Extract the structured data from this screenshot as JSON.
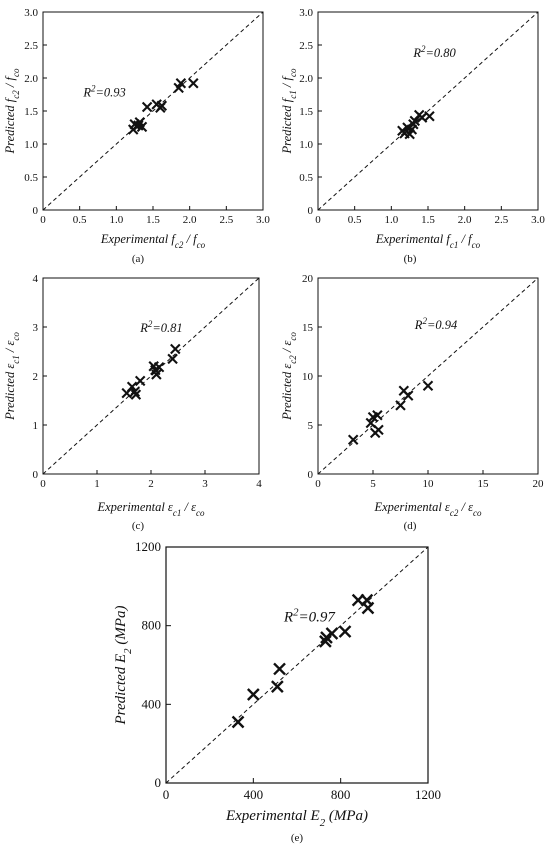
{
  "chart_data": [
    {
      "type": "scatter",
      "panel_label": "(a)",
      "xlabel": {
        "pre": "Experimental f",
        "sub1": "c2",
        "mid": " / f",
        "sub2": "co"
      },
      "ylabel": {
        "pre": "Predicted f",
        "sub1": "c2",
        "mid": " / f",
        "sub2": "co"
      },
      "xlim": [
        0,
        3
      ],
      "ylim": [
        0,
        3
      ],
      "xticks": [
        "0",
        "0.5",
        "1.0",
        "1.5",
        "2.0",
        "2.5",
        "3.0"
      ],
      "yticks": [
        "0",
        "0.5",
        "1.0",
        "1.5",
        "2.0",
        "2.5",
        "3.0"
      ],
      "annotation": {
        "pre": "R",
        "sup": "2",
        "post": "=0.93",
        "x": 0.55,
        "y": 1.72
      },
      "reference_line": "y = x (dashed)",
      "marker": "x",
      "points": [
        [
          1.23,
          1.22
        ],
        [
          1.25,
          1.3
        ],
        [
          1.3,
          1.28
        ],
        [
          1.32,
          1.33
        ],
        [
          1.35,
          1.26
        ],
        [
          1.42,
          1.56
        ],
        [
          1.55,
          1.6
        ],
        [
          1.6,
          1.55
        ],
        [
          1.62,
          1.58
        ],
        [
          1.85,
          1.85
        ],
        [
          1.88,
          1.92
        ],
        [
          2.05,
          1.92
        ]
      ]
    },
    {
      "type": "scatter",
      "panel_label": "(b)",
      "xlabel": {
        "pre": "Experimental f",
        "sub1": "c1",
        "mid": " / f",
        "sub2": "co"
      },
      "ylabel": {
        "pre": "Predicted f",
        "sub1": "c1",
        "mid": " / f",
        "sub2": "co"
      },
      "xlim": [
        0,
        3
      ],
      "ylim": [
        0,
        3
      ],
      "xticks": [
        "0",
        "0.5",
        "1.0",
        "1.5",
        "2.0",
        "2.5",
        "3.0"
      ],
      "yticks": [
        "0",
        "0.5",
        "1.0",
        "1.5",
        "2.0",
        "2.5",
        "3.0"
      ],
      "annotation": {
        "pre": "R",
        "sup": "2",
        "post": "=0.80",
        "x": 1.3,
        "y": 2.32
      },
      "reference_line": "y = x (dashed)",
      "marker": "x",
      "points": [
        [
          1.15,
          1.2
        ],
        [
          1.18,
          1.16
        ],
        [
          1.22,
          1.25
        ],
        [
          1.25,
          1.15
        ],
        [
          1.28,
          1.22
        ],
        [
          1.3,
          1.3
        ],
        [
          1.32,
          1.35
        ],
        [
          1.38,
          1.44
        ],
        [
          1.42,
          1.4
        ],
        [
          1.52,
          1.42
        ]
      ]
    },
    {
      "type": "scatter",
      "panel_label": "(c)",
      "xlabel": {
        "pre": "Experimental ε",
        "sub1": "c1",
        "mid": " / ε",
        "sub2": "co"
      },
      "ylabel": {
        "pre": "Predicted ε",
        "sub1": "c1",
        "mid": " / ε",
        "sub2": "co"
      },
      "xlim": [
        0,
        4
      ],
      "ylim": [
        0,
        4
      ],
      "xticks": [
        "0",
        "1",
        "2",
        "3",
        "4"
      ],
      "yticks": [
        "0",
        "1",
        "2",
        "3",
        "4"
      ],
      "annotation": {
        "pre": "R",
        "sup": "2",
        "post": "=0.81",
        "x": 1.8,
        "y": 2.9
      },
      "reference_line": "y = x (dashed)",
      "marker": "x",
      "points": [
        [
          1.55,
          1.65
        ],
        [
          1.65,
          1.78
        ],
        [
          1.7,
          1.68
        ],
        [
          1.72,
          1.62
        ],
        [
          1.8,
          1.9
        ],
        [
          2.05,
          2.2
        ],
        [
          2.08,
          2.12
        ],
        [
          2.1,
          2.03
        ],
        [
          2.15,
          2.18
        ],
        [
          2.4,
          2.35
        ],
        [
          2.45,
          2.55
        ]
      ]
    },
    {
      "type": "scatter",
      "panel_label": "(d)",
      "xlabel": {
        "pre": "Experimental ε",
        "sub1": "c2",
        "mid": " / ε",
        "sub2": "co"
      },
      "ylabel": {
        "pre": "Predicted ε",
        "sub1": "c2",
        "mid": " / ε",
        "sub2": "co"
      },
      "xlim": [
        0,
        20
      ],
      "ylim": [
        0,
        20
      ],
      "xticks": [
        "0",
        "5",
        "10",
        "15",
        "20"
      ],
      "yticks": [
        "0",
        "5",
        "10",
        "15",
        "20"
      ],
      "annotation": {
        "pre": "R",
        "sup": "2",
        "post": "=0.94",
        "x": 8.8,
        "y": 14.8
      },
      "reference_line": "y = x (dashed)",
      "marker": "x",
      "points": [
        [
          3.2,
          3.5
        ],
        [
          4.8,
          5.2
        ],
        [
          5.0,
          5.8
        ],
        [
          5.2,
          4.2
        ],
        [
          5.4,
          6.0
        ],
        [
          5.5,
          4.5
        ],
        [
          7.5,
          7.0
        ],
        [
          7.8,
          8.5
        ],
        [
          8.2,
          8.0
        ],
        [
          10.0,
          9.0
        ]
      ]
    },
    {
      "type": "scatter",
      "panel_label": "(e)",
      "xlabel": {
        "pre": "Experimental E",
        "sub1": "2",
        "mid": " (MPa)",
        "sub2": ""
      },
      "ylabel": {
        "pre": "Predicted E",
        "sub1": "2",
        "mid": " (MPa)",
        "sub2": ""
      },
      "xlim": [
        0,
        1200
      ],
      "ylim": [
        0,
        1200
      ],
      "xticks": [
        "0",
        "400",
        "800",
        "1200"
      ],
      "yticks": [
        "0",
        "400",
        "800",
        "1200"
      ],
      "annotation": {
        "pre": "R",
        "sup": "2",
        "post": "=0.97",
        "x": 540,
        "y": 820
      },
      "reference_line": "y = x (dashed)",
      "marker": "x",
      "points": [
        [
          330,
          310
        ],
        [
          400,
          450
        ],
        [
          510,
          490
        ],
        [
          520,
          580
        ],
        [
          730,
          720
        ],
        [
          735,
          740
        ],
        [
          760,
          760
        ],
        [
          820,
          770
        ],
        [
          880,
          930
        ],
        [
          920,
          930
        ],
        [
          925,
          890
        ]
      ]
    }
  ]
}
